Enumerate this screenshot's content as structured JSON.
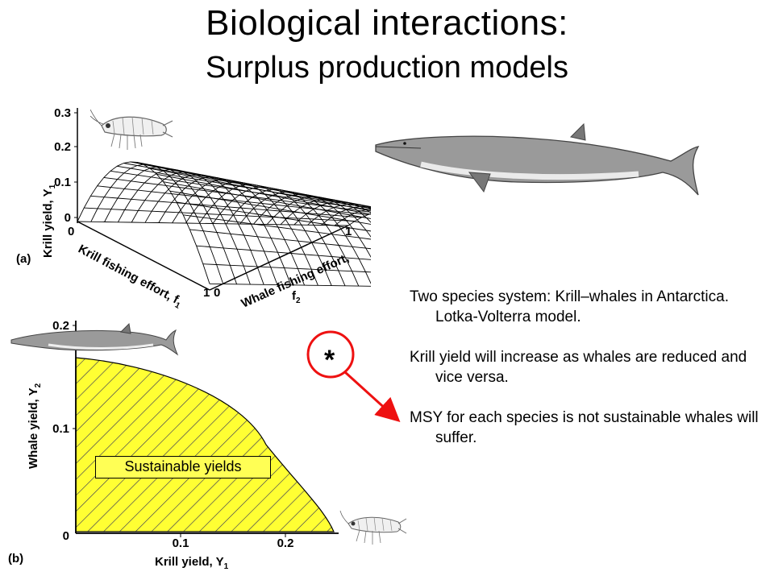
{
  "title": {
    "line1": "Biological interactions:",
    "line2": "Surplus production models"
  },
  "panel_a": {
    "label": "(a)",
    "y_axis_label": "Krill yield, Y",
    "y_axis_sub": "1",
    "y_ticks": [
      "0.3",
      "0.2",
      "0.1",
      "0"
    ],
    "krill_axis_label": "Krill fishing effort, f",
    "krill_axis_sub": "1",
    "whale_axis_label": "Whale fishing effort,",
    "whale_axis_line2": "f",
    "whale_axis_sub": "2",
    "tick_origin_right": "0",
    "tick_whale_end": "1",
    "tick_krill_end": "1",
    "tick_whale_start": "0"
  },
  "panel_b": {
    "label": "(b)",
    "y_axis_label": "Whale yield, Y",
    "y_axis_sub": "2",
    "x_axis_label": "Krill yield, Y",
    "x_axis_sub": "1",
    "y_ticks": [
      "0.2",
      "0.1",
      "0"
    ],
    "x_ticks": [
      "0.1",
      "0.2"
    ],
    "region_label": "Sustainable yields",
    "fill_color": "#ffff33"
  },
  "marker": {
    "symbol": "*",
    "circle_color": "#ee1111",
    "arrow_color": "#ee1111"
  },
  "bullets": [
    "Two species system: Krill–whales in Antarctica. Lotka-Volterra model.",
    "Krill yield will increase as whales are reduced and vice versa.",
    "MSY for each species is not sustainable whales will suffer."
  ],
  "icons": [
    "krill-icon",
    "whale-icon"
  ]
}
